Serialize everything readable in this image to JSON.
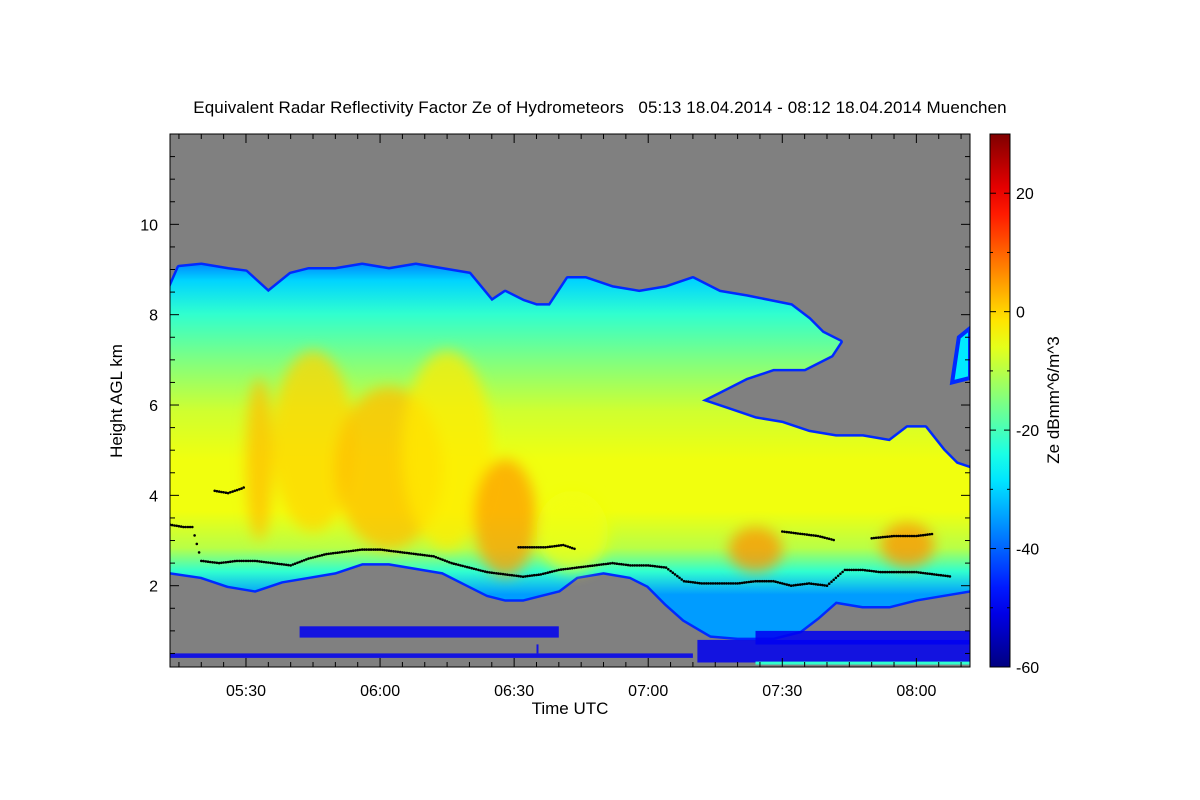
{
  "chart_data": {
    "type": "heatmap",
    "title": "Equivalent Radar Reflectivity Factor Ze of Hydrometeors   05:13 18.04.2014 - 08:12 18.04.2014 Muenchen",
    "xlabel": "Time UTC",
    "ylabel": "Height AGL km",
    "x_range_minutes": [
      313,
      492
    ],
    "xlim": [
      "05:13",
      "08:12"
    ],
    "x_ticks": [
      {
        "minutes": 330,
        "label": "05:30"
      },
      {
        "minutes": 360,
        "label": "06:00"
      },
      {
        "minutes": 390,
        "label": "06:30"
      },
      {
        "minutes": 420,
        "label": "07:00"
      },
      {
        "minutes": 450,
        "label": "07:30"
      },
      {
        "minutes": 480,
        "label": "08:00"
      }
    ],
    "ylim": [
      0.2,
      12
    ],
    "y_ticks": [
      {
        "value": 2,
        "label": "2"
      },
      {
        "value": 4,
        "label": "4"
      },
      {
        "value": 6,
        "label": "6"
      },
      {
        "value": 8,
        "label": "8"
      },
      {
        "value": 10,
        "label": "10"
      }
    ],
    "colorbar": {
      "label": "Ze dBmm^6/m^3",
      "range": [
        -60,
        30
      ],
      "ticks": [
        {
          "value": -60,
          "label": "-60"
        },
        {
          "value": -40,
          "label": "-40"
        },
        {
          "value": -20,
          "label": "-20"
        },
        {
          "value": 0,
          "label": "0"
        },
        {
          "value": 20,
          "label": "20"
        }
      ],
      "colormap": "jet"
    },
    "no_data_color": "#808080",
    "echo_top_km": [
      [
        313,
        8.6
      ],
      [
        315,
        9.05
      ],
      [
        320,
        9.1
      ],
      [
        326,
        9.0
      ],
      [
        330,
        8.95
      ],
      [
        335,
        8.5
      ],
      [
        340,
        8.9
      ],
      [
        344,
        9.0
      ],
      [
        350,
        9.0
      ],
      [
        356,
        9.1
      ],
      [
        362,
        9.0
      ],
      [
        368,
        9.1
      ],
      [
        374,
        9.0
      ],
      [
        380,
        8.9
      ],
      [
        385,
        8.3
      ],
      [
        388,
        8.5
      ],
      [
        392,
        8.3
      ],
      [
        395,
        8.2
      ],
      [
        398,
        8.2
      ],
      [
        402,
        8.8
      ],
      [
        406,
        8.8
      ],
      [
        412,
        8.6
      ],
      [
        418,
        8.5
      ],
      [
        424,
        8.6
      ],
      [
        430,
        8.8
      ],
      [
        436,
        8.5
      ],
      [
        442,
        8.4
      ],
      [
        447,
        8.3
      ],
      [
        452,
        8.2
      ],
      [
        456,
        7.9
      ],
      [
        459,
        7.6
      ],
      [
        463,
        7.4
      ],
      [
        461,
        7.1
      ],
      [
        455,
        6.8
      ],
      [
        448,
        6.8
      ],
      [
        442,
        6.6
      ],
      [
        436,
        6.3
      ],
      [
        432,
        6.1
      ],
      [
        438,
        5.9
      ],
      [
        444,
        5.7
      ],
      [
        450,
        5.6
      ],
      [
        456,
        5.4
      ],
      [
        462,
        5.3
      ],
      [
        468,
        5.3
      ],
      [
        474,
        5.2
      ],
      [
        478,
        5.5
      ],
      [
        482,
        5.5
      ],
      [
        486,
        5.0
      ],
      [
        489,
        4.7
      ],
      [
        492,
        4.6
      ]
    ],
    "echo_base_km": [
      [
        313,
        2.3
      ],
      [
        320,
        2.2
      ],
      [
        326,
        2.0
      ],
      [
        332,
        1.9
      ],
      [
        338,
        2.1
      ],
      [
        344,
        2.2
      ],
      [
        350,
        2.3
      ],
      [
        356,
        2.5
      ],
      [
        362,
        2.5
      ],
      [
        368,
        2.4
      ],
      [
        374,
        2.3
      ],
      [
        380,
        2.0
      ],
      [
        384,
        1.8
      ],
      [
        388,
        1.7
      ],
      [
        392,
        1.7
      ],
      [
        396,
        1.8
      ],
      [
        400,
        1.9
      ],
      [
        404,
        2.2
      ],
      [
        410,
        2.3
      ],
      [
        416,
        2.2
      ],
      [
        420,
        2.0
      ],
      [
        424,
        1.6
      ],
      [
        428,
        1.25
      ],
      [
        434,
        0.9
      ],
      [
        440,
        0.85
      ],
      [
        448,
        0.85
      ],
      [
        454,
        1.0
      ],
      [
        458,
        1.3
      ],
      [
        462,
        1.65
      ],
      [
        468,
        1.55
      ],
      [
        474,
        1.55
      ],
      [
        480,
        1.7
      ],
      [
        486,
        1.8
      ],
      [
        492,
        1.9
      ]
    ],
    "upper_patch_km": {
      "x": [
        488,
        492
      ],
      "base": 6.5,
      "top": 7.7
    },
    "cores": [
      {
        "t": 333,
        "h": 4.8,
        "rt": 3,
        "rh": 1.8,
        "ze": 2
      },
      {
        "t": 345,
        "h": 5.2,
        "rt": 9,
        "rh": 2.0,
        "ze": 0
      },
      {
        "t": 362,
        "h": 4.6,
        "rt": 12,
        "rh": 1.8,
        "ze": 2
      },
      {
        "t": 375,
        "h": 5.0,
        "rt": 10,
        "rh": 2.2,
        "ze": -2
      },
      {
        "t": 388,
        "h": 3.5,
        "rt": 7,
        "rh": 1.3,
        "ze": 5
      },
      {
        "t": 403,
        "h": 3.2,
        "rt": 8,
        "rh": 0.9,
        "ze": -5
      },
      {
        "t": 444,
        "h": 2.8,
        "rt": 6,
        "rh": 0.5,
        "ze": 6
      },
      {
        "t": 478,
        "h": 2.9,
        "rt": 6,
        "rh": 0.5,
        "ze": 6
      }
    ],
    "melting_layer_km": [
      [
        313,
        3.35
      ],
      [
        316,
        3.3
      ],
      [
        318,
        3.3
      ],
      [
        320,
        2.55
      ],
      [
        324,
        2.5
      ],
      [
        328,
        2.55
      ],
      [
        332,
        2.55
      ],
      [
        336,
        2.5
      ],
      [
        340,
        2.45
      ],
      [
        344,
        2.6
      ],
      [
        348,
        2.7
      ],
      [
        352,
        2.75
      ],
      [
        356,
        2.8
      ],
      [
        360,
        2.8
      ],
      [
        364,
        2.75
      ],
      [
        368,
        2.7
      ],
      [
        372,
        2.65
      ],
      [
        376,
        2.5
      ],
      [
        380,
        2.4
      ],
      [
        384,
        2.3
      ],
      [
        388,
        2.25
      ],
      [
        392,
        2.2
      ],
      [
        396,
        2.25
      ],
      [
        400,
        2.35
      ],
      [
        404,
        2.4
      ],
      [
        408,
        2.45
      ],
      [
        412,
        2.5
      ],
      [
        416,
        2.45
      ],
      [
        420,
        2.45
      ],
      [
        424,
        2.4
      ],
      [
        428,
        2.1
      ],
      [
        432,
        2.05
      ],
      [
        436,
        2.05
      ],
      [
        440,
        2.05
      ],
      [
        444,
        2.1
      ],
      [
        448,
        2.1
      ],
      [
        452,
        2.0
      ],
      [
        456,
        2.05
      ],
      [
        460,
        2.0
      ],
      [
        464,
        2.35
      ],
      [
        468,
        2.35
      ],
      [
        472,
        2.3
      ],
      [
        476,
        2.3
      ],
      [
        480,
        2.3
      ],
      [
        484,
        2.25
      ],
      [
        488,
        2.2
      ]
    ],
    "upper_ml_fragments_km": [
      [
        [
          323,
          4.1
        ],
        [
          326,
          4.05
        ],
        [
          329,
          4.15
        ],
        [
          330,
          4.2
        ]
      ],
      [
        [
          391,
          2.85
        ],
        [
          397,
          2.85
        ],
        [
          401,
          2.9
        ],
        [
          404,
          2.8
        ]
      ],
      [
        [
          450,
          3.2
        ],
        [
          454,
          3.15
        ],
        [
          458,
          3.1
        ],
        [
          462,
          3.0
        ]
      ],
      [
        [
          470,
          3.05
        ],
        [
          475,
          3.1
        ],
        [
          480,
          3.1
        ],
        [
          484,
          3.15
        ]
      ]
    ]
  }
}
